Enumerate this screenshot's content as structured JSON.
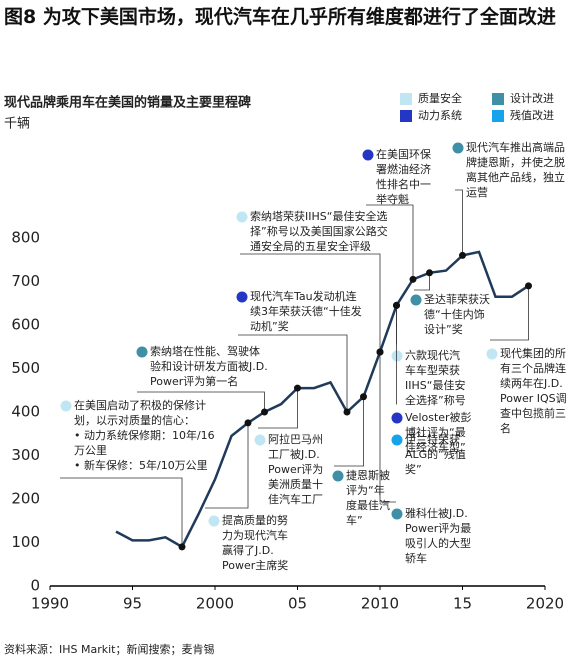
{
  "title": "图8 为攻下美国市场，现代汽车在几乎所有维度都进行了全面改进",
  "source": "资料来源：IHS Markit；新闻搜索；麦肯锡",
  "chart_data": {
    "type": "line",
    "title": "现代品牌乘用车在美国的销量及主要里程碑",
    "y_label": "千辆",
    "x": [
      1994,
      1995,
      1996,
      1997,
      1998,
      1999,
      2000,
      2001,
      2002,
      2003,
      2004,
      2005,
      2006,
      2007,
      2008,
      2009,
      2010,
      2011,
      2012,
      2013,
      2014,
      2015,
      2016,
      2017,
      2018,
      2019
    ],
    "series": [
      {
        "color": "#1f3a5a",
        "values": [
          125,
          105,
          105,
          112,
          90,
          165,
          245,
          345,
          375,
          400,
          418,
          455,
          455,
          468,
          400,
          435,
          538,
          645,
          705,
          720,
          725,
          760,
          768,
          665,
          665,
          690
        ]
      }
    ],
    "xlim": [
      1990,
      2020
    ],
    "xticks": [
      1990,
      {
        "value": 1995,
        "label": "95"
      },
      2000,
      {
        "value": 2005,
        "label": "05"
      },
      2010,
      {
        "value": 2015,
        "label": "15"
      },
      2020
    ],
    "ylim": [
      0,
      800
    ],
    "yticks": [
      0,
      100,
      200,
      300,
      400,
      500,
      600,
      700,
      800
    ],
    "grid": false,
    "legend": [
      {
        "name": "质量安全",
        "color": "#bfe6f2"
      },
      {
        "name": "设计改进",
        "color": "#3f8fa6"
      },
      {
        "name": "动力系统",
        "color": "#2437c4"
      },
      {
        "name": "残值改进",
        "color": "#16a3ec"
      }
    ],
    "annotations": [
      {
        "x": 1998,
        "color": "#bfe6f2",
        "lines": [
          "在美国启动了积极的保修计",
          "划，以示对质量的信心：",
          "• 动力系统保修期：10年/16",
          "  万公里",
          "• 新车保修：5年/10万公里"
        ]
      },
      {
        "x": 2002,
        "color": "#bfe6f2",
        "lines": [
          "提高质量的努",
          "力为现代汽车",
          "赢得了J.D.",
          "Power主席奖"
        ]
      },
      {
        "x": 2003,
        "color": "#3f8fa6",
        "lines": [
          "索纳塔在性能、驾驶体",
          "验和设计研发方面被J.D.",
          "Power评为第一名"
        ]
      },
      {
        "x": 2005,
        "color": "#bfe6f2",
        "lines": [
          "阿拉巴马州",
          "工厂被J.D.",
          "Power评为",
          "美洲质量十",
          "佳汽车工厂"
        ]
      },
      {
        "x": 2009,
        "color": "#3f8fa6",
        "lines": [
          "捷恩斯被",
          "评为“年",
          "度最佳汽",
          "车”"
        ]
      },
      {
        "x": 2008,
        "color": "#2437c4",
        "lines": [
          "现代汽车Tau发动机连",
          "续3年荣获沃德“十佳发",
          "动机”奖"
        ]
      },
      {
        "x": 2010,
        "color": "#bfe6f2",
        "lines": [
          "索纳塔荣获IIHS“最佳安全选",
          "择”称号以及美国国家公路交",
          "通安全局的五星安全评级"
        ]
      },
      {
        "x": 2012,
        "color": "#2437c4",
        "lines": [
          "在美国环保",
          "署燃油经济",
          "性排名中一",
          "举夺魁"
        ]
      },
      {
        "x": 2013,
        "color": "#3f8fa6",
        "lines": [
          "圣达菲荣获沃",
          "德“十佳内饰",
          "设计”奖"
        ]
      },
      {
        "x": 2015,
        "color": "#3f8fa6",
        "lines": [
          "现代汽车推出高端品",
          "牌捷恩斯，并使之脱",
          "离其他产品线，独立",
          "运营"
        ]
      },
      {
        "x": 2011,
        "color": "#bfe6f2",
        "lines": [
          "六款现代汽",
          "车车型荣获",
          "IIHS“最佳安",
          "全选择”称号"
        ]
      },
      {
        "x": 2011,
        "color": "#2437c4",
        "lines": [
          "Veloster被彭",
          "博社评为“最",
          "佳经济车型”"
        ]
      },
      {
        "x": 2011,
        "color": "#16a3ec",
        "lines": [
          "伊兰特荣获",
          "ALG的“残值",
          "奖”"
        ]
      },
      {
        "x": 2010,
        "color": "#3f8fa6",
        "lines": [
          "雅科仕被J.D.",
          "Power评为最",
          "吸引人的大型",
          "轿车"
        ]
      },
      {
        "x": 2019,
        "color": "#bfe6f2",
        "lines": [
          "现代集团的所",
          "有三个品牌连",
          "续两年在J.D.",
          "Power IQS调",
          "查中包揽前三",
          "名"
        ]
      }
    ]
  }
}
